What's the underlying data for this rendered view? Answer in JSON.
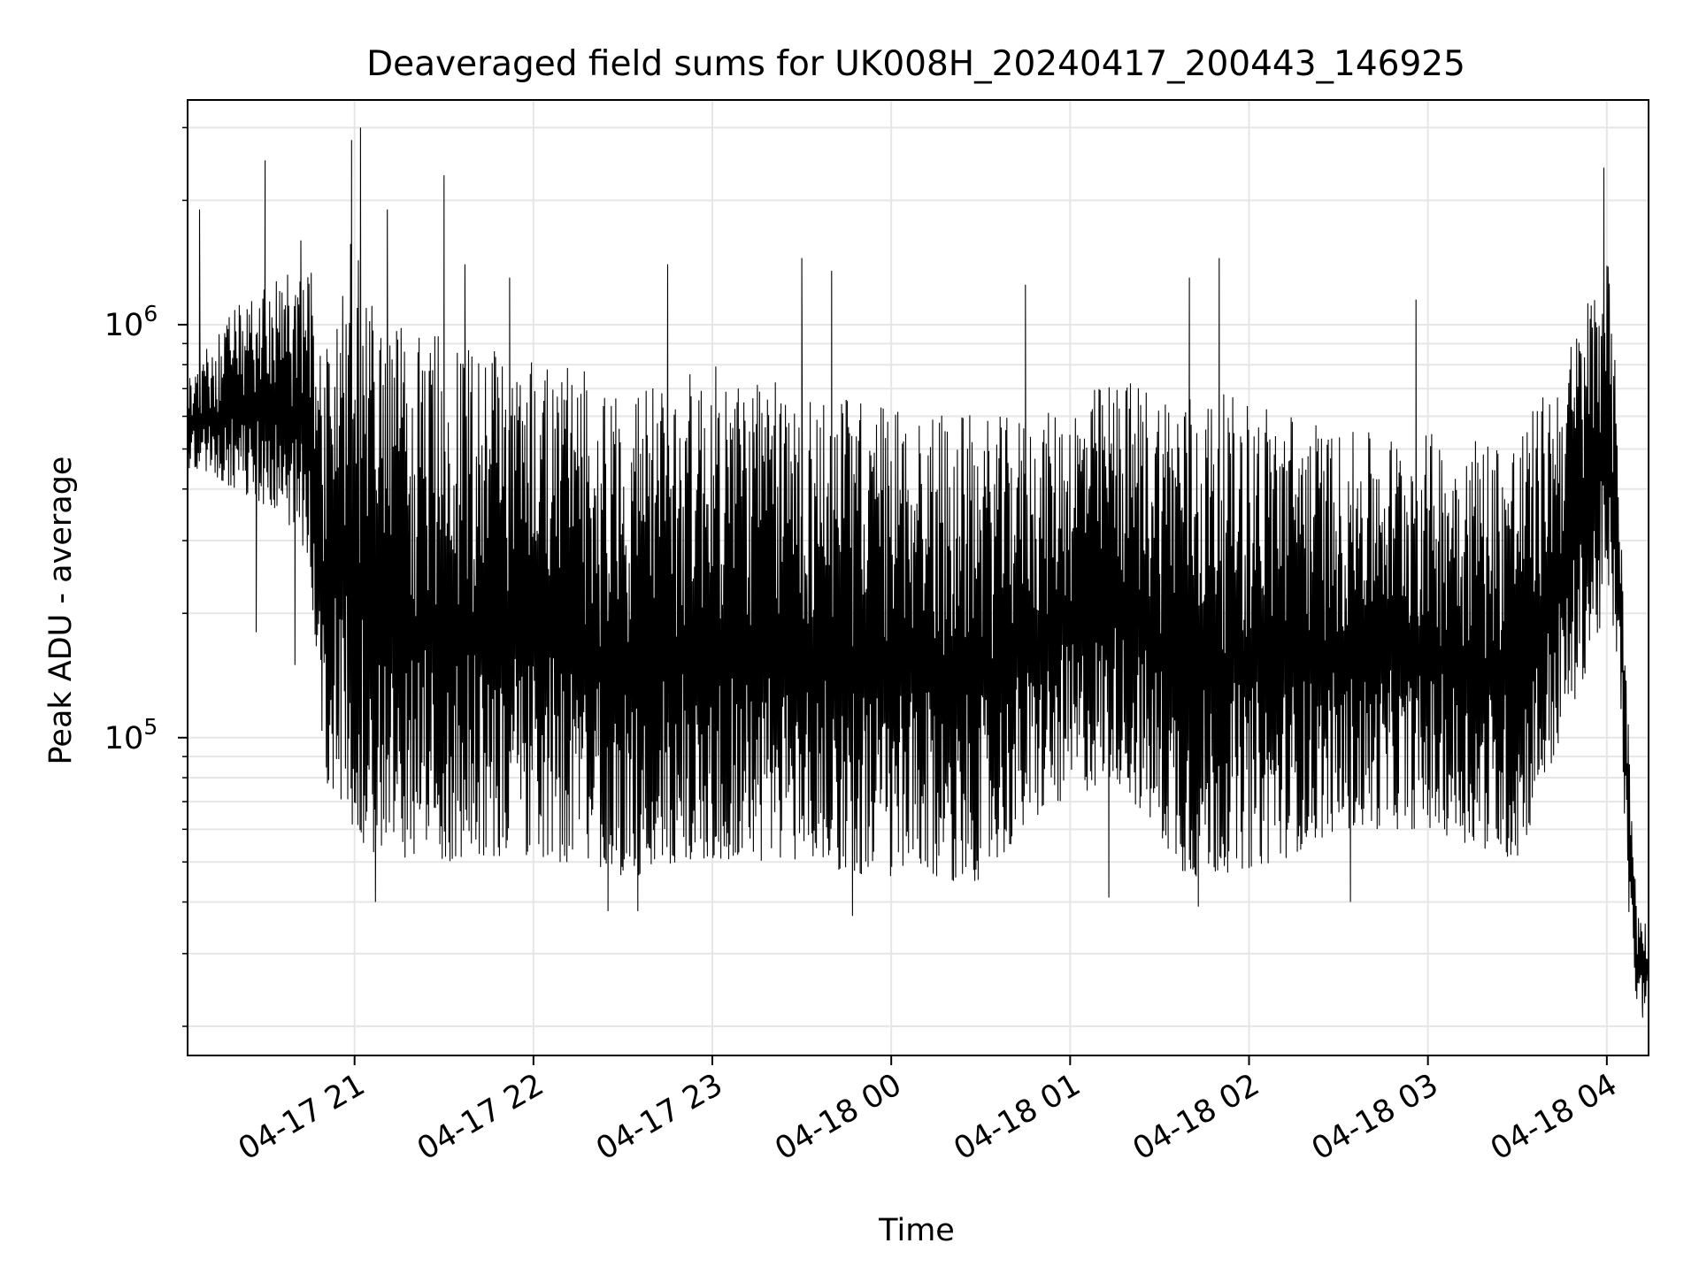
{
  "chart_data": {
    "type": "line",
    "title": "Deaveraged field sums for UK008H_20240417_200443_146925",
    "xlabel": "Time",
    "ylabel": "Peak ADU - average",
    "yscale": "log",
    "grid": true,
    "legend": "none",
    "line_color": "#000000",
    "grid_color": "#e6e6e6",
    "xlim": [
      "2024-04-17 20:04",
      "2024-04-18 04:14"
    ],
    "ylim": [
      17000,
      3500000
    ],
    "x_ticks": [
      {
        "value": "2024-04-17 21:00",
        "label": "04-17 21"
      },
      {
        "value": "2024-04-17 22:00",
        "label": "04-17 22"
      },
      {
        "value": "2024-04-17 23:00",
        "label": "04-17 23"
      },
      {
        "value": "2024-04-18 00:00",
        "label": "04-18 00"
      },
      {
        "value": "2024-04-18 01:00",
        "label": "04-18 01"
      },
      {
        "value": "2024-04-18 02:00",
        "label": "04-18 02"
      },
      {
        "value": "2024-04-18 03:00",
        "label": "04-18 03"
      },
      {
        "value": "2024-04-18 04:00",
        "label": "04-18 04"
      }
    ],
    "y_ticks": [
      {
        "value": 100000,
        "base": "10",
        "exp": "5"
      },
      {
        "value": 1000000,
        "base": "10",
        "exp": "6"
      }
    ],
    "envelope": [
      {
        "x": "2024-04-17 20:04",
        "low": 450000,
        "high": 750000
      },
      {
        "x": "2024-04-17 20:20",
        "low": 400000,
        "high": 1100000
      },
      {
        "x": "2024-04-17 20:35",
        "low": 350000,
        "high": 1300000
      },
      {
        "x": "2024-04-17 20:45",
        "low": 250000,
        "high": 1400000
      },
      {
        "x": "2024-04-17 20:50",
        "low": 80000,
        "high": 900000
      },
      {
        "x": "2024-04-17 20:58",
        "low": 60000,
        "high": 1700000
      },
      {
        "x": "2024-04-17 21:10",
        "low": 50000,
        "high": 1000000
      },
      {
        "x": "2024-04-17 21:30",
        "low": 50000,
        "high": 950000
      },
      {
        "x": "2024-04-17 22:00",
        "low": 52000,
        "high": 900000
      },
      {
        "x": "2024-04-17 22:30",
        "low": 45000,
        "high": 700000
      },
      {
        "x": "2024-04-17 23:00",
        "low": 50000,
        "high": 800000
      },
      {
        "x": "2024-04-17 23:30",
        "low": 50000,
        "high": 700000
      },
      {
        "x": "2024-04-18 00:00",
        "low": 45000,
        "high": 650000
      },
      {
        "x": "2024-04-18 00:30",
        "low": 45000,
        "high": 600000
      },
      {
        "x": "2024-04-18 00:50",
        "low": 65000,
        "high": 600000
      },
      {
        "x": "2024-04-18 01:15",
        "low": 80000,
        "high": 750000
      },
      {
        "x": "2024-04-18 01:40",
        "low": 45000,
        "high": 700000
      },
      {
        "x": "2024-04-18 02:10",
        "low": 50000,
        "high": 650000
      },
      {
        "x": "2024-04-18 02:30",
        "low": 60000,
        "high": 550000
      },
      {
        "x": "2024-04-18 03:00",
        "low": 60000,
        "high": 550000
      },
      {
        "x": "2024-04-18 03:30",
        "low": 50000,
        "high": 550000
      },
      {
        "x": "2024-04-18 03:45",
        "low": 100000,
        "high": 800000
      },
      {
        "x": "2024-04-18 04:00",
        "low": 200000,
        "high": 1600000
      },
      {
        "x": "2024-04-18 04:04",
        "low": 150000,
        "high": 600000
      },
      {
        "x": "2024-04-18 04:07",
        "low": 40000,
        "high": 120000
      },
      {
        "x": "2024-04-18 04:10",
        "low": 22000,
        "high": 40000
      },
      {
        "x": "2024-04-18 04:14",
        "low": 23000,
        "high": 35000
      }
    ],
    "peaks": [
      {
        "x": "2024-04-17 20:08",
        "y": 1900000
      },
      {
        "x": "2024-04-17 20:30",
        "y": 2500000
      },
      {
        "x": "2024-04-17 20:42",
        "y": 1600000
      },
      {
        "x": "2024-04-17 20:59",
        "y": 2800000
      },
      {
        "x": "2024-04-17 21:02",
        "y": 3000000
      },
      {
        "x": "2024-04-17 21:11",
        "y": 1900000
      },
      {
        "x": "2024-04-17 21:30",
        "y": 2300000
      },
      {
        "x": "2024-04-17 21:37",
        "y": 1400000
      },
      {
        "x": "2024-04-17 21:52",
        "y": 1300000
      },
      {
        "x": "2024-04-17 22:45",
        "y": 1400000
      },
      {
        "x": "2024-04-17 23:30",
        "y": 1450000
      },
      {
        "x": "2024-04-17 23:40",
        "y": 1350000
      },
      {
        "x": "2024-04-18 00:45",
        "y": 1250000
      },
      {
        "x": "2024-04-18 01:40",
        "y": 1300000
      },
      {
        "x": "2024-04-18 01:50",
        "y": 1450000
      },
      {
        "x": "2024-04-18 02:56",
        "y": 1150000
      },
      {
        "x": "2024-04-18 03:59",
        "y": 2400000
      }
    ],
    "troughs": [
      {
        "x": "2024-04-17 20:27",
        "y": 180000
      },
      {
        "x": "2024-04-17 20:40",
        "y": 150000
      },
      {
        "x": "2024-04-17 21:07",
        "y": 40000
      },
      {
        "x": "2024-04-17 22:25",
        "y": 38000
      },
      {
        "x": "2024-04-17 22:35",
        "y": 38000
      },
      {
        "x": "2024-04-17 23:47",
        "y": 37000
      },
      {
        "x": "2024-04-18 01:13",
        "y": 41000
      },
      {
        "x": "2024-04-18 01:43",
        "y": 39000
      },
      {
        "x": "2024-04-18 02:34",
        "y": 40000
      },
      {
        "x": "2024-04-18 04:12",
        "y": 21000
      }
    ]
  }
}
